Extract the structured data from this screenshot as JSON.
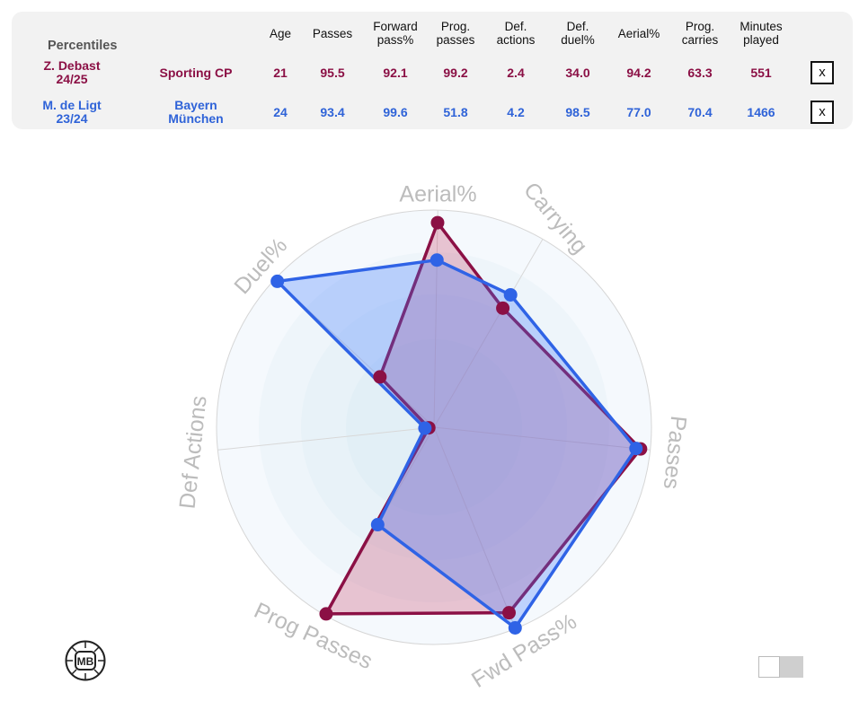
{
  "table": {
    "title": "Percentiles",
    "columns": [
      {
        "key": "age",
        "line1": "Age",
        "line2": ""
      },
      {
        "key": "passes",
        "line1": "Passes",
        "line2": ""
      },
      {
        "key": "fwd",
        "line1": "Forward",
        "line2": "pass%"
      },
      {
        "key": "prog",
        "line1": "Prog.",
        "line2": "passes"
      },
      {
        "key": "defact",
        "line1": "Def.",
        "line2": "actions"
      },
      {
        "key": "defduel",
        "line1": "Def.",
        "line2": "duel%"
      },
      {
        "key": "aerial",
        "line1": "Aerial%",
        "line2": ""
      },
      {
        "key": "carries",
        "line1": "Prog.",
        "line2": "carries"
      },
      {
        "key": "minutes",
        "line1": "Minutes",
        "line2": "played"
      }
    ],
    "rows": [
      {
        "name": "Z. Debast",
        "season": "24/25",
        "club_line1": "Sporting CP",
        "club_line2": "",
        "values": [
          "21",
          "95.5",
          "92.1",
          "99.2",
          "2.4",
          "34.0",
          "94.2",
          "63.3",
          "551"
        ],
        "remove_label": "x",
        "color": "#8b1045"
      },
      {
        "name": "M. de Ligt",
        "season": "23/24",
        "club_line1": "Bayern",
        "club_line2": "München",
        "values": [
          "24",
          "93.4",
          "99.6",
          "51.8",
          "4.2",
          "98.5",
          "77.0",
          "70.4",
          "1466"
        ],
        "remove_label": "x",
        "color": "#2f63d8"
      }
    ]
  },
  "chart_data": {
    "type": "radar",
    "axes": [
      "Aerial%",
      "Carrying",
      "Passes",
      "Fwd Pass%",
      "Prog Passes",
      "Def Actions",
      "Duel%"
    ],
    "range": [
      0,
      100
    ],
    "grid": true,
    "series": [
      {
        "name": "Z. Debast",
        "values": [
          94.2,
          63.3,
          95.5,
          92.1,
          99.2,
          2.4,
          34.0
        ],
        "color": "#8b1045",
        "fill": "rgba(200,70,110,0.30)"
      },
      {
        "name": "M. de Ligt",
        "values": [
          77.0,
          70.4,
          93.4,
          99.6,
          51.8,
          4.2,
          98.5
        ],
        "color": "#2f63e6",
        "fill": "rgba(60,120,255,0.30)"
      }
    ]
  },
  "footer": {
    "logo_text": "MB",
    "toggle_state": "off"
  }
}
